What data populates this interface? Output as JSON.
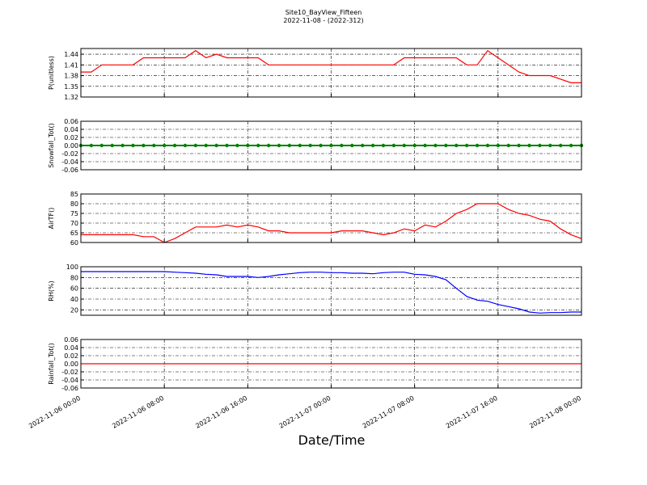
{
  "title": "Site10_BayView_Fifteen",
  "subtitle": "2022-11-08 - (2022-312)",
  "x_label": "Date/Time",
  "chart_data": [
    {
      "type": "line",
      "y_label": "P(unitless)",
      "color": "#ff0000",
      "grid": true,
      "xlim": [
        0,
        48
      ],
      "xticks": [
        0,
        8,
        16,
        24,
        32,
        40,
        48
      ],
      "ylim": [
        1.32,
        1.456
      ],
      "yticks": [
        1.32,
        1.35,
        1.38,
        1.41,
        1.44
      ],
      "x": [
        0,
        1,
        2,
        3,
        4,
        5,
        6,
        7,
        8,
        9,
        10,
        11,
        12,
        13,
        14,
        15,
        16,
        17,
        18,
        19,
        20,
        21,
        22,
        23,
        24,
        25,
        26,
        27,
        28,
        29,
        30,
        31,
        32,
        33,
        34,
        35,
        36,
        37,
        38,
        39,
        40,
        41,
        42,
        43,
        44,
        45,
        46,
        47,
        48
      ],
      "values": [
        1.39,
        1.39,
        1.41,
        1.41,
        1.41,
        1.41,
        1.43,
        1.43,
        1.43,
        1.43,
        1.43,
        1.45,
        1.43,
        1.44,
        1.43,
        1.43,
        1.43,
        1.43,
        1.41,
        1.41,
        1.41,
        1.41,
        1.41,
        1.41,
        1.41,
        1.41,
        1.41,
        1.41,
        1.41,
        1.41,
        1.41,
        1.43,
        1.43,
        1.43,
        1.43,
        1.43,
        1.43,
        1.41,
        1.41,
        1.45,
        1.43,
        1.41,
        1.39,
        1.38,
        1.38,
        1.38,
        1.37,
        1.36,
        1.36
      ]
    },
    {
      "type": "line",
      "y_label": "Snowfall_Tot()",
      "color": "#008000",
      "markers": true,
      "grid": true,
      "xlim": [
        0,
        48
      ],
      "xticks": [
        0,
        8,
        16,
        24,
        32,
        40,
        48
      ],
      "ylim": [
        -0.06,
        0.06
      ],
      "yticks": [
        -0.06,
        -0.04,
        -0.02,
        {
          "value": 0,
          "label": "0.00"
        },
        0.02,
        0.04,
        0.06
      ],
      "x": [
        0,
        1,
        2,
        3,
        4,
        5,
        6,
        7,
        8,
        9,
        10,
        11,
        12,
        13,
        14,
        15,
        16,
        17,
        18,
        19,
        20,
        21,
        22,
        23,
        24,
        25,
        26,
        27,
        28,
        29,
        30,
        31,
        32,
        33,
        34,
        35,
        36,
        37,
        38,
        39,
        40,
        41,
        42,
        43,
        44,
        45,
        46,
        47,
        48
      ],
      "values": [
        0,
        0,
        0,
        0,
        0,
        0,
        0,
        0,
        0,
        0,
        0,
        0,
        0,
        0,
        0,
        0,
        0,
        0,
        0,
        0,
        0,
        0,
        0,
        0,
        0,
        0,
        0,
        0,
        0,
        0,
        0,
        0,
        0,
        0,
        0,
        0,
        0,
        0,
        0,
        0,
        0,
        0,
        0,
        0,
        0,
        0,
        0,
        0,
        0
      ]
    },
    {
      "type": "line",
      "y_label": "AirTF()",
      "color": "#ff0000",
      "grid": true,
      "xlim": [
        0,
        48
      ],
      "xticks": [
        0,
        8,
        16,
        24,
        32,
        40,
        48
      ],
      "ylim": [
        60,
        85
      ],
      "yticks": [
        60,
        65,
        70,
        75,
        80,
        85
      ],
      "x": [
        0,
        1,
        2,
        3,
        4,
        5,
        6,
        7,
        8,
        9,
        10,
        11,
        12,
        13,
        14,
        15,
        16,
        17,
        18,
        19,
        20,
        21,
        22,
        23,
        24,
        25,
        26,
        27,
        28,
        29,
        30,
        31,
        32,
        33,
        34,
        35,
        36,
        37,
        38,
        39,
        40,
        41,
        42,
        43,
        44,
        45,
        46,
        47,
        48
      ],
      "values": [
        64,
        64,
        64,
        64,
        64,
        64,
        63,
        63,
        60,
        62,
        65,
        68,
        68,
        68,
        69,
        68,
        69,
        68,
        66,
        66,
        65,
        65,
        65,
        65,
        65,
        66,
        66,
        66,
        65,
        64,
        65,
        67,
        66,
        69,
        68,
        71,
        75,
        77,
        80,
        80,
        80,
        77,
        75,
        74,
        72,
        71,
        67,
        64,
        62
      ]
    },
    {
      "type": "line",
      "y_label": "RH(%)",
      "color": "#0000ff",
      "grid": true,
      "xlim": [
        0,
        48
      ],
      "xticks": [
        0,
        8,
        16,
        24,
        32,
        40,
        48
      ],
      "ylim": [
        10,
        100
      ],
      "yticks": [
        20,
        40,
        60,
        80,
        100
      ],
      "x": [
        0,
        1,
        2,
        3,
        4,
        5,
        6,
        7,
        8,
        9,
        10,
        11,
        12,
        13,
        14,
        15,
        16,
        17,
        18,
        19,
        20,
        21,
        22,
        23,
        24,
        25,
        26,
        27,
        28,
        29,
        30,
        31,
        32,
        33,
        34,
        35,
        36,
        37,
        38,
        39,
        40,
        41,
        42,
        43,
        44,
        45,
        46,
        47,
        48
      ],
      "values": [
        91,
        91,
        91,
        91,
        91,
        91,
        91,
        91,
        91,
        90,
        89,
        88,
        86,
        85,
        82,
        82,
        82,
        80,
        82,
        85,
        87,
        89,
        90,
        90,
        89,
        89,
        88,
        88,
        87,
        89,
        90,
        90,
        86,
        85,
        82,
        76,
        60,
        45,
        38,
        36,
        30,
        26,
        22,
        16,
        14,
        15,
        15,
        16,
        16
      ]
    },
    {
      "type": "line",
      "y_label": "Rainfall_Tot()",
      "color": "#ff0000",
      "grid": true,
      "xlim": [
        0,
        48
      ],
      "xticks": [
        {
          "value": 0,
          "label": "2022-11-06 00:00"
        },
        {
          "value": 8,
          "label": "2022-11-06 08:00"
        },
        {
          "value": 16,
          "label": "2022-11-06 16:00"
        },
        {
          "value": 24,
          "label": "2022-11-07 00:00"
        },
        {
          "value": 32,
          "label": "2022-11-07 08:00"
        },
        {
          "value": 40,
          "label": "2022-11-07 16:00"
        },
        {
          "value": 48,
          "label": "2022-11-08 00:00"
        }
      ],
      "ylim": [
        -0.06,
        0.06
      ],
      "yticks": [
        -0.06,
        -0.04,
        -0.02,
        {
          "value": 0,
          "label": "0.00"
        },
        0.02,
        0.04,
        0.06
      ],
      "x": [
        0,
        1,
        2,
        3,
        4,
        5,
        6,
        7,
        8,
        9,
        10,
        11,
        12,
        13,
        14,
        15,
        16,
        17,
        18,
        19,
        20,
        21,
        22,
        23,
        24,
        25,
        26,
        27,
        28,
        29,
        30,
        31,
        32,
        33,
        34,
        35,
        36,
        37,
        38,
        39,
        40,
        41,
        42,
        43,
        44,
        45,
        46,
        47,
        48
      ],
      "values": [
        0,
        0,
        0,
        0,
        0,
        0,
        0,
        0,
        0,
        0,
        0,
        0,
        0,
        0,
        0,
        0,
        0,
        0,
        0,
        0,
        0,
        0,
        0,
        0,
        0,
        0,
        0,
        0,
        0,
        0,
        0,
        0,
        0,
        0,
        0,
        0,
        0,
        0,
        0,
        0,
        0,
        0,
        0,
        0,
        0,
        0,
        0,
        0,
        0
      ]
    }
  ]
}
